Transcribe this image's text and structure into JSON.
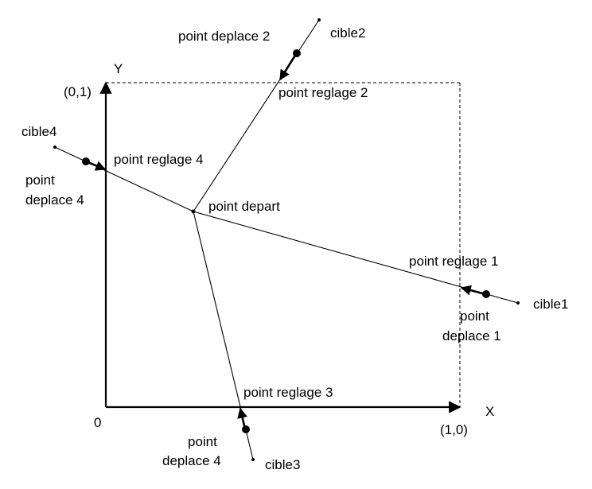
{
  "axes": {
    "x_label": "X",
    "y_label": "Y",
    "origin_label": "0",
    "x_end_label": "(1,0)",
    "y_end_label": "(0,1)"
  },
  "points": {
    "depart": "point depart",
    "cible1": "cible1",
    "cible2": "cible2",
    "cible3": "cible3",
    "cible4": "cible4",
    "reglage1": "point reglage 1",
    "reglage2": "point reglage 2",
    "reglage3": "point reglage 3",
    "reglage4": "point reglage 4",
    "deplace1_line1": "point",
    "deplace1_line2": "deplace 1",
    "deplace2": "point deplace 2",
    "deplace3_line1": "point",
    "deplace3_line2": "deplace 4",
    "deplace4_line1": "point",
    "deplace4_line2": "deplace 4"
  }
}
